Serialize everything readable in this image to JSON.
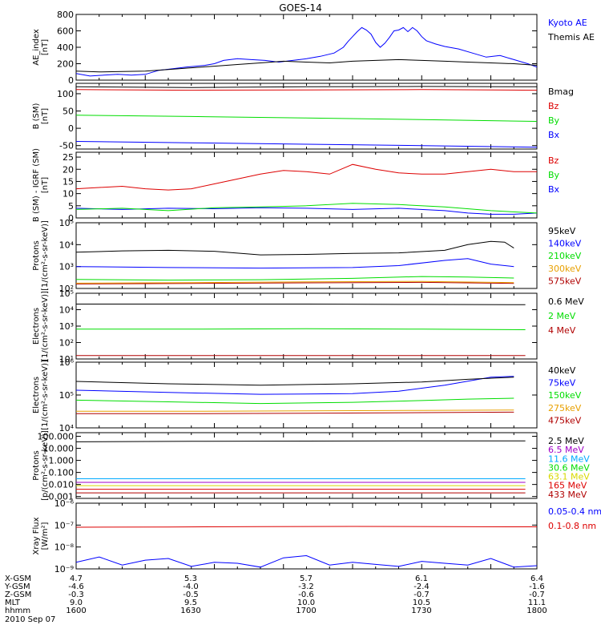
{
  "title": "GOES-14",
  "colors": {
    "black": "#000000",
    "blue": "#0000ff",
    "red": "#dd0000",
    "green": "#00dd00",
    "orange": "#e8a000",
    "yellow": "#d8d800",
    "lightblue": "#00aaff",
    "purple": "#a000c8",
    "darkred": "#b00000"
  },
  "footer": {
    "rows": [
      {
        "label": "X-GSM",
        "values": [
          "4.7",
          "5.3",
          "5.7",
          "6.1",
          "6.4"
        ]
      },
      {
        "label": "Y-GSM",
        "values": [
          "-4.6",
          "-4.0",
          "-3.2",
          "-2.4",
          "-1.6"
        ]
      },
      {
        "label": "Z-GSM",
        "values": [
          "-0.3",
          "-0.5",
          "-0.6",
          "-0.7",
          "-0.7"
        ]
      },
      {
        "label": "MLT",
        "values": [
          "9.0",
          "9.5",
          "10.0",
          "10.5",
          "11.1"
        ]
      },
      {
        "label": "hhmm",
        "values": [
          "1600",
          "1630",
          "1700",
          "1730",
          "1800"
        ]
      }
    ],
    "date": "2010 Sep 07"
  },
  "chart_data": [
    {
      "type": "line",
      "ylabel": "AE_index\n[nT]",
      "ylim": [
        0,
        800
      ],
      "log": false,
      "yticks": [
        0,
        200,
        400,
        600,
        800
      ],
      "ytick_labels": [
        "0",
        "200",
        "400",
        "600",
        "800"
      ],
      "xlim": [
        1600,
        1800
      ],
      "series": [
        {
          "name": "Kyoto AE",
          "color": "blue",
          "x": [
            1600,
            1606,
            1612,
            1618,
            1624,
            1630,
            1636,
            1642,
            1648,
            1652,
            1656,
            1660,
            1664,
            1670,
            1676,
            1682,
            1688,
            1694,
            1700,
            1706,
            1712,
            1716,
            1718,
            1720,
            1722,
            1724,
            1726,
            1728,
            1730,
            1732,
            1734,
            1736,
            1738,
            1740,
            1742,
            1744,
            1746,
            1748,
            1750,
            1752,
            1756,
            1760,
            1766,
            1772,
            1778,
            1784,
            1790,
            1796,
            1800
          ],
          "y": [
            80,
            50,
            60,
            70,
            60,
            70,
            120,
            140,
            160,
            170,
            180,
            200,
            240,
            260,
            250,
            240,
            220,
            240,
            260,
            290,
            330,
            400,
            470,
            530,
            590,
            640,
            610,
            560,
            460,
            400,
            450,
            520,
            600,
            610,
            640,
            590,
            640,
            600,
            530,
            480,
            440,
            410,
            380,
            330,
            280,
            300,
            250,
            200,
            160
          ]
        },
        {
          "name": "Themis AE",
          "color": "black",
          "x": [
            1600,
            1610,
            1620,
            1630,
            1640,
            1650,
            1660,
            1670,
            1680,
            1690,
            1700,
            1710,
            1720,
            1730,
            1740,
            1750,
            1760,
            1770,
            1780,
            1790,
            1800
          ],
          "y": [
            110,
            100,
            105,
            110,
            130,
            150,
            170,
            190,
            210,
            230,
            220,
            210,
            230,
            240,
            250,
            240,
            230,
            220,
            210,
            200,
            180
          ]
        }
      ]
    },
    {
      "type": "line",
      "ylabel": "B (SM)\n[nT]",
      "ylim": [
        -60,
        130
      ],
      "log": false,
      "yticks": [
        -50,
        0,
        50,
        100
      ],
      "ytick_labels": [
        "-50",
        "0",
        "50",
        "100"
      ],
      "xlim": [
        1600,
        1800
      ],
      "series": [
        {
          "name": "Bx",
          "color": "blue",
          "x": [
            1600,
            1650,
            1700,
            1750,
            1800
          ],
          "y": [
            -38,
            -42,
            -46,
            -50,
            -55
          ]
        },
        {
          "name": "By",
          "color": "green",
          "x": [
            1600,
            1650,
            1700,
            1750,
            1800
          ],
          "y": [
            38,
            34,
            30,
            25,
            20
          ]
        },
        {
          "name": "Bz",
          "color": "red",
          "x": [
            1600,
            1650,
            1700,
            1750,
            1800
          ],
          "y": [
            112,
            110,
            111,
            112,
            110
          ]
        },
        {
          "name": "Bmag",
          "color": "black",
          "x": [
            1600,
            1650,
            1700,
            1750,
            1800
          ],
          "y": [
            120,
            118,
            120,
            121,
            120
          ]
        }
      ]
    },
    {
      "type": "line",
      "ylabel": "B (SM) - IGRF (SM)\n[nT]",
      "ylim": [
        0,
        27
      ],
      "log": false,
      "yticks": [
        0,
        5,
        10,
        15,
        20,
        25
      ],
      "ytick_labels": [
        "0",
        "5",
        "10",
        "15",
        "20",
        "25"
      ],
      "xlim": [
        1600,
        1800
      ],
      "series": [
        {
          "name": "Bx",
          "color": "blue",
          "x": [
            1600,
            1620,
            1640,
            1660,
            1680,
            1700,
            1720,
            1740,
            1760,
            1770,
            1780,
            1790,
            1800
          ],
          "y": [
            4,
            3.5,
            4,
            3.8,
            4.2,
            4,
            3.5,
            4,
            3,
            2,
            1.5,
            1.5,
            2
          ]
        },
        {
          "name": "By",
          "color": "green",
          "x": [
            1600,
            1620,
            1640,
            1660,
            1680,
            1700,
            1720,
            1740,
            1760,
            1780,
            1800
          ],
          "y": [
            3.5,
            4,
            3,
            4.2,
            4.5,
            5,
            6,
            5.5,
            4.5,
            3,
            2
          ]
        },
        {
          "name": "Bz",
          "color": "red",
          "x": [
            1600,
            1610,
            1620,
            1630,
            1640,
            1650,
            1660,
            1670,
            1680,
            1690,
            1700,
            1710,
            1720,
            1730,
            1740,
            1750,
            1760,
            1770,
            1780,
            1790,
            1800
          ],
          "y": [
            12,
            12.5,
            13,
            12,
            11.5,
            12,
            14,
            16,
            18,
            19.5,
            19,
            18,
            22,
            20,
            18.5,
            18,
            18,
            19,
            20,
            19,
            19
          ]
        }
      ]
    },
    {
      "type": "line",
      "ylabel": "Protons\n[1/(cm²-s-sr-keV)]",
      "ylim": [
        100,
        100000
      ],
      "log": true,
      "yticks": [
        100,
        1000,
        10000,
        100000
      ],
      "ytick_labels": [
        "10²",
        "10³",
        "10⁴",
        "10⁵"
      ],
      "xlim": [
        1600,
        1800
      ],
      "series": [
        {
          "name": "575keV",
          "color": "darkred",
          "x": [
            1600,
            1650,
            1700,
            1750,
            1790
          ],
          "y": [
            160,
            170,
            180,
            190,
            170
          ]
        },
        {
          "name": "300keV",
          "color": "orange",
          "x": [
            1600,
            1650,
            1700,
            1750,
            1790
          ],
          "y": [
            175,
            185,
            200,
            210,
            185
          ]
        },
        {
          "name": "210keV",
          "color": "green",
          "x": [
            1600,
            1640,
            1680,
            1720,
            1750,
            1770,
            1790
          ],
          "y": [
            260,
            240,
            250,
            290,
            350,
            330,
            300
          ]
        },
        {
          "name": "140keV",
          "color": "blue",
          "x": [
            1600,
            1640,
            1680,
            1720,
            1740,
            1760,
            1770,
            1780,
            1790
          ],
          "y": [
            1000,
            900,
            850,
            900,
            1100,
            1900,
            2300,
            1300,
            1000
          ]
        },
        {
          "name": "95keV",
          "color": "black",
          "x": [
            1600,
            1620,
            1640,
            1660,
            1680,
            1700,
            1720,
            1740,
            1760,
            1770,
            1780,
            1786,
            1790
          ],
          "y": [
            4500,
            5200,
            5500,
            5000,
            3400,
            3600,
            4000,
            4200,
            5500,
            10000,
            14000,
            13000,
            7000
          ]
        }
      ]
    },
    {
      "type": "line",
      "ylabel": "Electrons\n[1/(cm²-s-sr-keV)]",
      "ylim": [
        10,
        100000
      ],
      "log": true,
      "yticks": [
        10,
        100,
        1000,
        10000,
        100000
      ],
      "ytick_labels": [
        "10¹",
        "10²",
        "10³",
        "10⁴",
        "10⁵"
      ],
      "xlim": [
        1600,
        1800
      ],
      "series": [
        {
          "name": "4 MeV",
          "color": "darkred",
          "x": [
            1600,
            1650,
            1700,
            1750,
            1795
          ],
          "y": [
            16,
            16,
            16,
            16,
            16
          ]
        },
        {
          "name": "2 MeV",
          "color": "green",
          "x": [
            1600,
            1650,
            1700,
            1750,
            1795
          ],
          "y": [
            650,
            650,
            700,
            650,
            600
          ]
        },
        {
          "name": "0.6 MeV",
          "color": "black",
          "x": [
            1600,
            1650,
            1700,
            1750,
            1795
          ],
          "y": [
            22000,
            22000,
            22000,
            21000,
            20000
          ]
        }
      ]
    },
    {
      "type": "line",
      "ylabel": "Electrons\n[1/(cm²-s-sr-keV)]",
      "ylim": [
        10000,
        1000000
      ],
      "log": true,
      "yticks": [
        10000,
        100000,
        1000000
      ],
      "ytick_labels": [
        "10⁴",
        "10⁵",
        "10⁶"
      ],
      "xlim": [
        1600,
        1800
      ],
      "series": [
        {
          "name": "475keV",
          "color": "darkred",
          "x": [
            1600,
            1650,
            1700,
            1750,
            1790
          ],
          "y": [
            27000,
            27000,
            28000,
            29000,
            30000
          ]
        },
        {
          "name": "275keV",
          "color": "orange",
          "x": [
            1600,
            1650,
            1700,
            1750,
            1790
          ],
          "y": [
            32000,
            32000,
            33000,
            34000,
            35000
          ]
        },
        {
          "name": "150keV",
          "color": "green",
          "x": [
            1600,
            1640,
            1680,
            1720,
            1750,
            1770,
            1790
          ],
          "y": [
            70000,
            62000,
            55000,
            60000,
            68000,
            75000,
            80000
          ]
        },
        {
          "name": "75keV",
          "color": "blue",
          "x": [
            1600,
            1640,
            1680,
            1720,
            1740,
            1760,
            1780,
            1790
          ],
          "y": [
            140000,
            120000,
            105000,
            110000,
            130000,
            200000,
            350000,
            370000
          ]
        },
        {
          "name": "40keV",
          "color": "black",
          "x": [
            1600,
            1640,
            1680,
            1720,
            1750,
            1770,
            1790
          ],
          "y": [
            260000,
            220000,
            200000,
            220000,
            250000,
            300000,
            350000
          ]
        }
      ]
    },
    {
      "type": "line",
      "ylabel": "Protons\n[p/(cm²-s-sr-keV)]",
      "ylim": [
        0.0007,
        200
      ],
      "log": true,
      "yticks": [
        0.001,
        0.01,
        0.1,
        1,
        10,
        100
      ],
      "ytick_labels": [
        "0.001",
        "0.010",
        "0.100",
        "1.000",
        "10.000",
        "100.000"
      ],
      "xlim": [
        1600,
        1800
      ],
      "series": [
        {
          "name": "433 MeV",
          "color": "darkred",
          "x": [
            1600,
            1650,
            1700,
            1750,
            1795
          ],
          "y": [
            0.002,
            0.002,
            0.002,
            0.002,
            0.002
          ]
        },
        {
          "name": "165 MeV",
          "color": "red",
          "x": [
            1600,
            1650,
            1700,
            1750,
            1795
          ],
          "y": [
            0.004,
            0.004,
            0.004,
            0.004,
            0.004
          ]
        },
        {
          "name": "63.1 MeV",
          "color": "yellow",
          "x": [
            1600,
            1650,
            1700,
            1750,
            1795
          ],
          "y": [
            0.008,
            0.008,
            0.008,
            0.008,
            0.008
          ]
        },
        {
          "name": "30.6 MeV",
          "color": "green",
          "x": [
            1600,
            1650,
            1700,
            1750,
            1795
          ],
          "y": [
            0.015,
            0.015,
            0.015,
            0.015,
            0.015
          ]
        },
        {
          "name": "11.6 MeV",
          "color": "lightblue",
          "x": [
            1600,
            1650,
            1700,
            1750,
            1795
          ],
          "y": [
            0.03,
            0.03,
            0.03,
            0.03,
            0.03
          ]
        },
        {
          "name": "6.5 MeV",
          "color": "purple",
          "x": [
            1600,
            1650,
            1700,
            1750,
            1795
          ],
          "y": [
            0.015,
            0.015,
            0.015,
            0.015,
            0.015
          ]
        },
        {
          "name": "2.5 MeV",
          "color": "black",
          "x": [
            1600,
            1650,
            1700,
            1750,
            1795
          ],
          "y": [
            35,
            38,
            40,
            42,
            42
          ]
        }
      ]
    },
    {
      "type": "line",
      "ylabel": "Xray Flux\n[W/m²]",
      "ylim": [
        1e-09,
        1e-06
      ],
      "log": true,
      "yticks": [
        1e-09,
        1e-08,
        1e-07,
        1e-06
      ],
      "ytick_labels": [
        "10⁻⁹",
        "10⁻⁸",
        "10⁻⁷",
        "10⁻⁶"
      ],
      "xlim": [
        1600,
        1800
      ],
      "series": [
        {
          "name": "0.1-0.8 nm",
          "color": "red",
          "x": [
            1600,
            1640,
            1680,
            1720,
            1760,
            1800
          ],
          "y": [
            8e-08,
            8.2e-08,
            8.5e-08,
            8.7e-08,
            8.5e-08,
            8.3e-08
          ]
        },
        {
          "name": "0.05-0.4 nm",
          "color": "blue",
          "x": [
            1600,
            1610,
            1620,
            1630,
            1640,
            1650,
            1660,
            1670,
            1680,
            1690,
            1700,
            1710,
            1720,
            1730,
            1740,
            1750,
            1760,
            1770,
            1780,
            1790,
            1800
          ],
          "y": [
            2e-09,
            3.5e-09,
            1.5e-09,
            2.5e-09,
            3e-09,
            1.3e-09,
            2e-09,
            1.8e-09,
            1.2e-09,
            3.2e-09,
            4e-09,
            1.5e-09,
            2e-09,
            1.6e-09,
            1.3e-09,
            2.2e-09,
            1.8e-09,
            1.5e-09,
            3e-09,
            1.2e-09,
            1.4e-09
          ]
        }
      ]
    }
  ]
}
